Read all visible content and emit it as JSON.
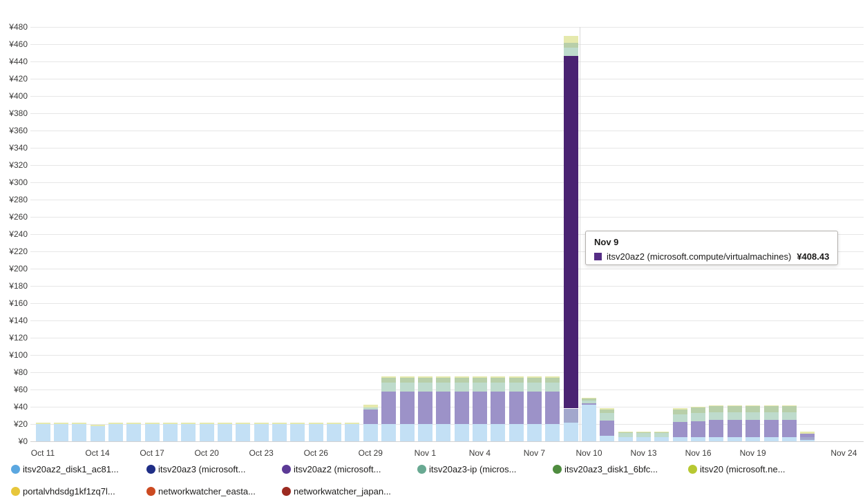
{
  "tooltip": {
    "title": "Nov 9",
    "series_label": "itsv20az2 (microsoft.compute/virtualmachines)",
    "value": "¥408.43",
    "swatch_color": "#552D85"
  },
  "chart_data": {
    "type": "bar",
    "stacked": true,
    "currency": "¥",
    "ylim": [
      0,
      480
    ],
    "ytick_step": 20,
    "grid": "horizontal",
    "legend_position": "bottom",
    "days": [
      "Oct 11",
      "Oct 12",
      "Oct 13",
      "Oct 14",
      "Oct 15",
      "Oct 16",
      "Oct 17",
      "Oct 18",
      "Oct 19",
      "Oct 20",
      "Oct 21",
      "Oct 22",
      "Oct 23",
      "Oct 24",
      "Oct 25",
      "Oct 26",
      "Oct 27",
      "Oct 28",
      "Oct 29",
      "Oct 30",
      "Oct 31",
      "Nov 1",
      "Nov 2",
      "Nov 3",
      "Nov 4",
      "Nov 5",
      "Nov 6",
      "Nov 7",
      "Nov 8",
      "Nov 9",
      "Nov 10",
      "Nov 11",
      "Nov 12",
      "Nov 13",
      "Nov 14",
      "Nov 15",
      "Nov 16",
      "Nov 17",
      "Nov 18",
      "Nov 19",
      "Nov 20",
      "Nov 21",
      "Nov 22",
      "Nov 23",
      "Nov 24"
    ],
    "x_ticks": [
      {
        "day": 0,
        "label": "Oct 11"
      },
      {
        "day": 3,
        "label": "Oct 14"
      },
      {
        "day": 6,
        "label": "Oct 17"
      },
      {
        "day": 9,
        "label": "Oct 20"
      },
      {
        "day": 12,
        "label": "Oct 23"
      },
      {
        "day": 15,
        "label": "Oct 26"
      },
      {
        "day": 18,
        "label": "Oct 29"
      },
      {
        "day": 21,
        "label": "Nov 1"
      },
      {
        "day": 24,
        "label": "Nov 4"
      },
      {
        "day": 27,
        "label": "Nov 7"
      },
      {
        "day": 30,
        "label": "Nov 10"
      },
      {
        "day": 33,
        "label": "Nov 13"
      },
      {
        "day": 36,
        "label": "Nov 16"
      },
      {
        "day": 39,
        "label": "Nov 19"
      },
      {
        "day": 44,
        "label": "Nov 24"
      }
    ],
    "highlight": {
      "day": 29,
      "series": 2,
      "value": 408.43,
      "color": "#4A2372"
    },
    "series": [
      {
        "name": "itsv20az2_disk1_ac81...",
        "color": "#5BA7E0",
        "faded": "#c3e0f5",
        "values": [
          20,
          20,
          20,
          17.8,
          20,
          20,
          20,
          20,
          20,
          20,
          20,
          20,
          20,
          20,
          20,
          20,
          20,
          20,
          20,
          20,
          20,
          20,
          20,
          20,
          20,
          20,
          20,
          20,
          20,
          22,
          42.5,
          6.5,
          4.8,
          4.8,
          4.8,
          4.5,
          4.5,
          4.5,
          4.5,
          4.5,
          4.5,
          4.5,
          1.8,
          0,
          0
        ]
      },
      {
        "name": "itsv20az3 (microsoft...",
        "color": "#1F2E86",
        "faded": "#a2a7cc",
        "values": [
          0,
          0,
          0,
          0,
          0,
          0,
          0,
          0,
          0,
          0,
          0,
          0,
          0,
          0,
          0,
          0,
          0,
          0,
          0,
          0,
          0,
          0,
          0,
          0,
          0,
          0,
          0,
          0,
          0,
          16,
          0,
          0,
          0,
          0,
          0,
          0,
          0,
          0,
          0,
          0,
          0,
          0,
          3,
          0,
          0
        ]
      },
      {
        "name": "itsv20az2 (microsoft...",
        "color": "#5C3A96",
        "faded": "#9c92c8",
        "values": [
          0,
          0,
          0,
          0,
          0,
          0,
          0,
          0,
          0,
          0,
          0,
          0,
          0,
          0,
          0,
          0,
          0,
          0,
          16.5,
          38,
          38,
          38,
          38,
          38,
          38,
          38,
          38,
          38,
          38,
          408.43,
          1.5,
          17.5,
          0,
          0,
          0,
          18,
          19,
          20,
          20,
          20,
          20,
          20,
          3.8,
          0,
          0
        ]
      },
      {
        "name": "itsv20az3-ip (micros...",
        "color": "#69A992",
        "faded": "#bedbcc",
        "values": [
          0,
          0,
          0,
          0,
          0,
          0,
          0,
          0,
          0,
          0,
          0,
          0,
          0,
          0,
          0,
          0,
          0,
          0,
          3,
          10,
          10,
          10,
          10,
          10,
          10,
          10,
          10,
          10,
          10,
          9.5,
          3.5,
          9,
          4.5,
          4.5,
          4.5,
          9,
          9,
          9,
          9,
          9,
          9,
          9,
          0,
          0,
          0
        ]
      },
      {
        "name": "itsv20az3_disk1_6bfc...",
        "color": "#4F8C3F",
        "faded": "#b8cfa9",
        "values": [
          0,
          0,
          0,
          0,
          0,
          0,
          0,
          0,
          0,
          0,
          0,
          0,
          0,
          0,
          0,
          0,
          0,
          0,
          0,
          5.5,
          5.5,
          5.5,
          5.5,
          5.5,
          5.5,
          5.5,
          5.5,
          5.5,
          5.5,
          5.5,
          2,
          4,
          1,
          1,
          1,
          5.5,
          6.5,
          7,
          7,
          7,
          7,
          7,
          0,
          0,
          0
        ]
      },
      {
        "name": "itsv20 (microsoft.ne...",
        "color": "#B7C832",
        "faded": "#e5e9ad",
        "values": [
          1.3,
          1.3,
          1.3,
          1.3,
          1.3,
          1.3,
          1.3,
          1.3,
          1.3,
          1.3,
          1.3,
          1.3,
          1.3,
          1.3,
          1.3,
          1.3,
          1.3,
          1.3,
          3,
          1.5,
          1.5,
          1.5,
          1.5,
          1.5,
          1.5,
          1.5,
          1.5,
          1.5,
          1.5,
          8,
          1,
          1.5,
          1,
          1,
          1,
          1.2,
          1.2,
          1.2,
          1.2,
          1.2,
          1.2,
          1.2,
          2.8,
          0,
          0
        ]
      },
      {
        "name": "portalvhdsdg1kf1zq7l...",
        "color": "#E7C63B",
        "faded": "#f1e4ab",
        "values": [
          0,
          0,
          0,
          0,
          0,
          0,
          0,
          0,
          0,
          0,
          0,
          0,
          0,
          0,
          0,
          0,
          0,
          0,
          0,
          0,
          0,
          0,
          0,
          0,
          0,
          0,
          0,
          0,
          0,
          0,
          0,
          0,
          0,
          0,
          0,
          0,
          0,
          0,
          0,
          0,
          0,
          0,
          0,
          0,
          0
        ]
      },
      {
        "name": "networkwatcher_easta...",
        "color": "#CC4A21",
        "faded": "#eec9b8",
        "values": [
          0,
          0,
          0,
          0,
          0,
          0,
          0,
          0,
          0,
          0,
          0,
          0,
          0,
          0,
          0,
          0,
          0,
          0,
          0,
          0,
          0,
          0,
          0,
          0,
          0,
          0,
          0,
          0,
          0,
          0,
          0,
          0,
          0,
          0,
          0,
          0,
          0,
          0,
          0,
          0,
          0,
          0,
          0,
          0,
          0
        ]
      },
      {
        "name": "networkwatcher_japan...",
        "color": "#9C2B21",
        "faded": "#e3bcb8",
        "values": [
          0,
          0,
          0,
          0,
          0,
          0,
          0,
          0,
          0,
          0,
          0,
          0,
          0,
          0,
          0,
          0,
          0,
          0,
          0,
          0,
          0,
          0,
          0,
          0,
          0,
          0,
          0,
          0,
          0,
          0,
          0,
          0,
          0,
          0,
          0,
          0,
          0,
          0,
          0,
          0,
          0,
          0,
          0,
          0,
          0
        ]
      }
    ]
  },
  "legend": {
    "items": [
      {
        "label": "itsv20az2_disk1_ac81...",
        "color": "#5BA7E0"
      },
      {
        "label": "itsv20az3 (microsoft...",
        "color": "#1F2E86"
      },
      {
        "label": "itsv20az2 (microsoft...",
        "color": "#5C3A96"
      },
      {
        "label": "itsv20az3-ip (micros...",
        "color": "#69A992"
      },
      {
        "label": "itsv20az3_disk1_6bfc...",
        "color": "#4F8C3F"
      },
      {
        "label": "itsv20 (microsoft.ne...",
        "color": "#B7C832"
      },
      {
        "label": "portalvhdsdg1kf1zq7l...",
        "color": "#E7C63B"
      },
      {
        "label": "networkwatcher_easta...",
        "color": "#CC4A21"
      },
      {
        "label": "networkwatcher_japan...",
        "color": "#9C2B21"
      }
    ]
  }
}
